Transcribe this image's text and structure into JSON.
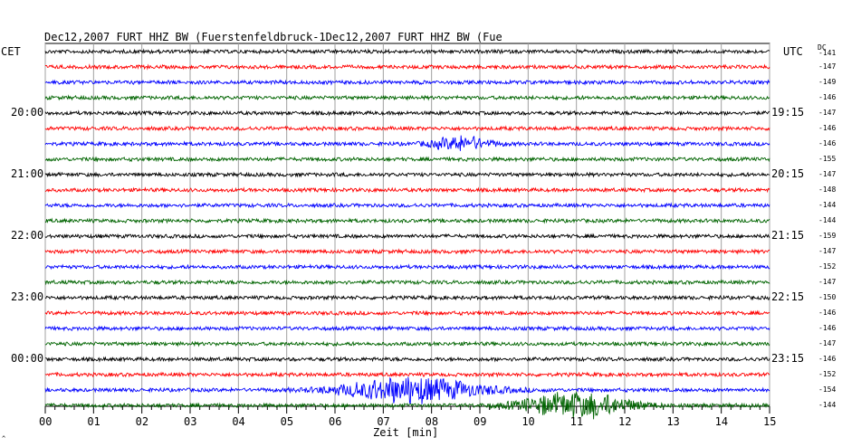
{
  "header": {
    "left": "Dec12,2007   FURT HHZ BW (Fuerstenfeldbruck-1",
    "right": "Dec12,2007   FURT HHZ BW (Fue"
  },
  "tz_left": "CET",
  "tz_right": "UTC",
  "dc_header": "DC",
  "corner_note": "^",
  "colors": {
    "black": "#000000",
    "red": "#ff0000",
    "blue": "#0000ff",
    "green": "#006400",
    "grid": "#a0a0a0"
  },
  "chart_data": {
    "type": "line",
    "title": "Dec12,2007   FURT HHZ BW (Fuerstenfeldbruck-1Dec12,2007   FURT HHZ BW (Fue",
    "xlabel": "Zeit [min]",
    "xlim": [
      0,
      15
    ],
    "x_ticks": [
      "00",
      "01",
      "02",
      "03",
      "04",
      "05",
      "06",
      "07",
      "08",
      "09",
      "10",
      "11",
      "12",
      "13",
      "14",
      "15"
    ],
    "trace_count": 24,
    "trace_color_cycle": [
      "black",
      "red",
      "blue",
      "green"
    ],
    "left_time_labels": [
      {
        "trace": 4,
        "label": "20:00"
      },
      {
        "trace": 8,
        "label": "21:00"
      },
      {
        "trace": 12,
        "label": "22:00"
      },
      {
        "trace": 16,
        "label": "23:00"
      },
      {
        "trace": 20,
        "label": "00:00"
      }
    ],
    "right_time_labels": [
      {
        "trace": 4,
        "label": "19:15"
      },
      {
        "trace": 8,
        "label": "20:15"
      },
      {
        "trace": 12,
        "label": "21:15"
      },
      {
        "trace": 16,
        "label": "22:15"
      },
      {
        "trace": 20,
        "label": "23:15"
      }
    ],
    "dc_values": [
      "-141",
      "-147",
      "-149",
      "-146",
      "-147",
      "-146",
      "-146",
      "-155",
      "-147",
      "-148",
      "-144",
      "-144",
      "-159",
      "-147",
      "-152",
      "-147",
      "-150",
      "-146",
      "-146",
      "-147",
      "-146",
      "-152",
      "-154",
      "-144"
    ],
    "events": [
      {
        "trace": 6,
        "center_min": 8.6,
        "width_min": 1.6,
        "amplitude": "medium"
      },
      {
        "trace": 22,
        "center_min": 7.6,
        "width_min": 3.8,
        "amplitude": "large"
      },
      {
        "trace": 23,
        "center_min": 11.0,
        "width_min": 3.0,
        "amplitude": "large"
      }
    ]
  }
}
